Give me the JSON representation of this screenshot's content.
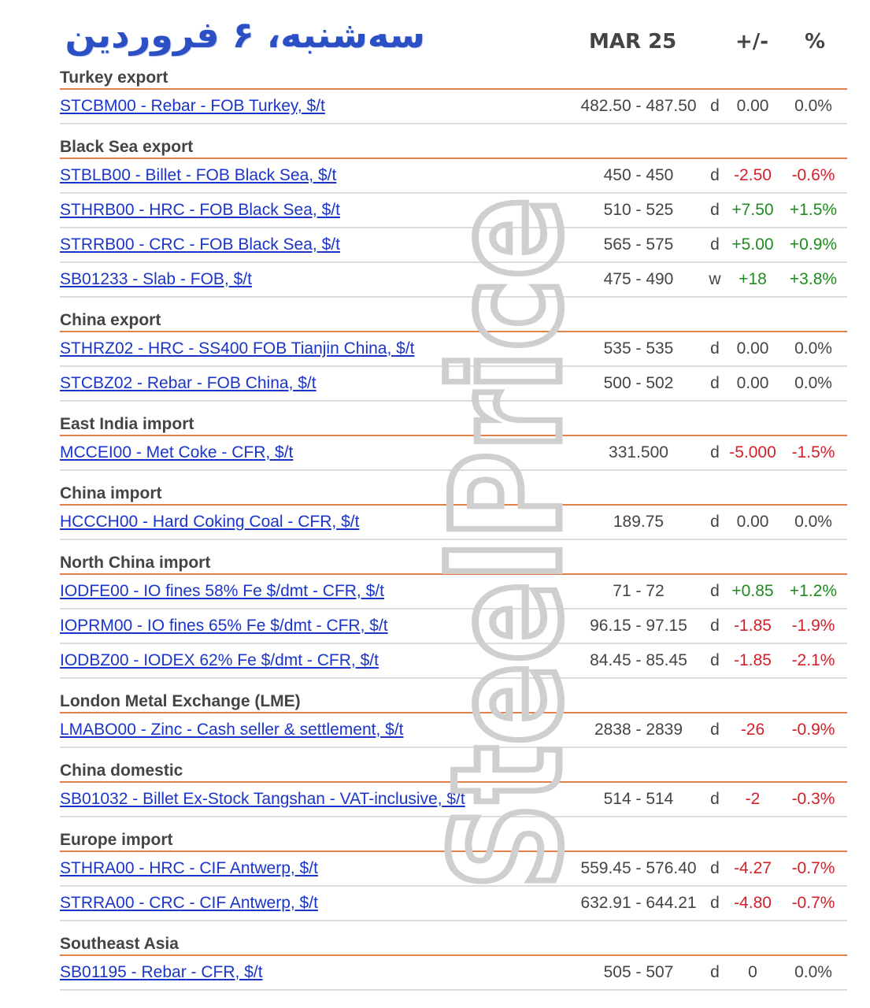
{
  "title_fa": "سه‌شنبه، ۶ فروردین",
  "header": {
    "date": "MAR 25",
    "change": "+/-",
    "percent": "%"
  },
  "watermark": "SteelPrice",
  "colors": {
    "link": "#1a35c7",
    "negative": "#d31f2a",
    "positive": "#1f8a1f",
    "divider": "#e0814a"
  },
  "groups": [
    {
      "title": "Turkey export",
      "rows": [
        {
          "name": "STCBM00 - Rebar - FOB Turkey, $/t",
          "range": "482.50 - 487.50",
          "freq": "d",
          "chg": "0.00",
          "pct": "0.0%",
          "dir": ""
        }
      ]
    },
    {
      "title": "Black Sea export",
      "rows": [
        {
          "name": "STBLB00 - Billet - FOB Black Sea, $/t",
          "range": "450 - 450",
          "freq": "d",
          "chg": "-2.50",
          "pct": "-0.6%",
          "dir": "neg"
        },
        {
          "name": "STHRB00 - HRC - FOB Black Sea, $/t",
          "range": "510 - 525",
          "freq": "d",
          "chg": "+7.50",
          "pct": "+1.5%",
          "dir": "pos"
        },
        {
          "name": "STRRB00 - CRC - FOB Black Sea, $/t",
          "range": "565 - 575",
          "freq": "d",
          "chg": "+5.00",
          "pct": "+0.9%",
          "dir": "pos"
        },
        {
          "name": "SB01233 - Slab - FOB, $/t",
          "range": "475 - 490",
          "freq": "w",
          "chg": "+18",
          "pct": "+3.8%",
          "dir": "pos"
        }
      ]
    },
    {
      "title": "China export",
      "rows": [
        {
          "name": "STHRZ02 - HRC - SS400 FOB Tianjin China, $/t",
          "range": "535 - 535",
          "freq": "d",
          "chg": "0.00",
          "pct": "0.0%",
          "dir": ""
        },
        {
          "name": "STCBZ02 - Rebar - FOB China, $/t",
          "range": "500 - 502",
          "freq": "d",
          "chg": "0.00",
          "pct": "0.0%",
          "dir": ""
        }
      ]
    },
    {
      "title": "East India import",
      "rows": [
        {
          "name": "MCCEI00 - Met Coke - CFR, $/t",
          "range": "331.500",
          "freq": "d",
          "chg": "-5.000",
          "pct": "-1.5%",
          "dir": "neg"
        }
      ]
    },
    {
      "title": "China import",
      "rows": [
        {
          "name": "HCCCH00 - Hard Coking Coal - CFR, $/t",
          "range": "189.75",
          "freq": "d",
          "chg": "0.00",
          "pct": "0.0%",
          "dir": ""
        }
      ]
    },
    {
      "title": "North China import",
      "rows": [
        {
          "name": "IODFE00 - IO fines 58% Fe $/dmt - CFR, $/t",
          "range": "71 - 72",
          "freq": "d",
          "chg": "+0.85",
          "pct": "+1.2%",
          "dir": "pos"
        },
        {
          "name": "IOPRM00 - IO fines 65% Fe $/dmt - CFR, $/t",
          "range": "96.15 - 97.15",
          "freq": "d",
          "chg": "-1.85",
          "pct": "-1.9%",
          "dir": "neg"
        },
        {
          "name": "IODBZ00 - IODEX 62% Fe $/dmt - CFR, $/t",
          "range": "84.45 - 85.45",
          "freq": "d",
          "chg": "-1.85",
          "pct": "-2.1%",
          "dir": "neg"
        }
      ]
    },
    {
      "title": "London Metal Exchange (LME)",
      "rows": [
        {
          "name": "LMABO00 - Zinc - Cash seller & settlement, $/t",
          "range": "2838 - 2839",
          "freq": "d",
          "chg": "-26",
          "pct": "-0.9%",
          "dir": "neg"
        }
      ]
    },
    {
      "title": "China domestic",
      "rows": [
        {
          "name": "SB01032 - Billet Ex-Stock Tangshan - VAT-inclusive, $/t",
          "range": "514 - 514",
          "freq": "d",
          "chg": "-2",
          "pct": "-0.3%",
          "dir": "neg"
        }
      ]
    },
    {
      "title": "Europe import",
      "rows": [
        {
          "name": "STHRA00 - HRC - CIF Antwerp, $/t",
          "range": "559.45 - 576.40",
          "freq": "d",
          "chg": "-4.27",
          "pct": "-0.7%",
          "dir": "neg"
        },
        {
          "name": "STRRA00 - CRC - CIF Antwerp, $/t",
          "range": "632.91 - 644.21",
          "freq": "d",
          "chg": "-4.80",
          "pct": "-0.7%",
          "dir": "neg"
        }
      ]
    },
    {
      "title": "Southeast Asia",
      "rows": [
        {
          "name": "SB01195 - Rebar - CFR, $/t",
          "range": "505 - 507",
          "freq": "d",
          "chg": "0",
          "pct": "0.0%",
          "dir": ""
        }
      ]
    }
  ]
}
